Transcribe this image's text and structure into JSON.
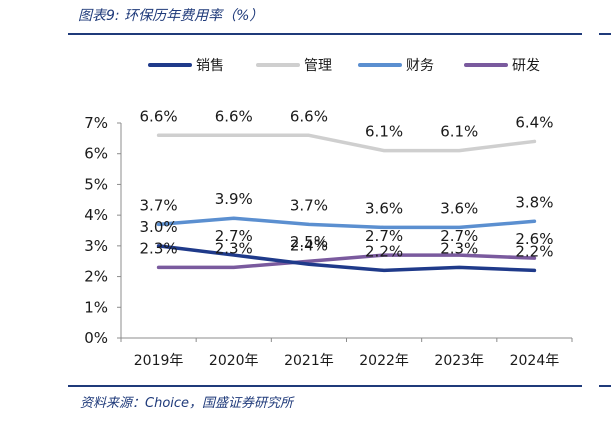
{
  "figure": {
    "title": "图表9:  环保历年费用率（%）",
    "source": "资料来源：Choice，国盛证券研究所"
  },
  "colors": {
    "sales": "#1f3a8a",
    "mgmt": "#cfcfcf",
    "finance": "#5b8fd0",
    "rd": "#7a5a9e",
    "rule": "#1f3a7a"
  },
  "chart_data": {
    "type": "line",
    "categories": [
      "2019年",
      "2020年",
      "2021年",
      "2022年",
      "2023年",
      "2024年"
    ],
    "y_ticks": [
      "0%",
      "1%",
      "2%",
      "3%",
      "4%",
      "5%",
      "6%",
      "7%"
    ],
    "ylim": [
      0,
      7
    ],
    "grid": false,
    "legend_position": "top",
    "series": [
      {
        "name": "销售",
        "color_key": "sales",
        "values": [
          3.0,
          2.7,
          2.4,
          2.2,
          2.3,
          2.2
        ],
        "labels": [
          "3.0%",
          "2.7%",
          "2.4%",
          "2.2%",
          "2.3%",
          "2.2%"
        ]
      },
      {
        "name": "管理",
        "color_key": "mgmt",
        "values": [
          6.6,
          6.6,
          6.6,
          6.1,
          6.1,
          6.4
        ],
        "labels": [
          "6.6%",
          "6.6%",
          "6.6%",
          "6.1%",
          "6.1%",
          "6.4%"
        ]
      },
      {
        "name": "财务",
        "color_key": "finance",
        "values": [
          3.7,
          3.9,
          3.7,
          3.6,
          3.6,
          3.8
        ],
        "labels": [
          "3.7%",
          "3.9%",
          "3.7%",
          "3.6%",
          "3.6%",
          "3.8%"
        ]
      },
      {
        "name": "研发",
        "color_key": "rd",
        "values": [
          2.3,
          2.3,
          2.5,
          2.7,
          2.7,
          2.6
        ],
        "labels": [
          "2.3%",
          "2.3%",
          "2.5%",
          "2.7%",
          "2.7%",
          "2.6%"
        ]
      }
    ]
  }
}
